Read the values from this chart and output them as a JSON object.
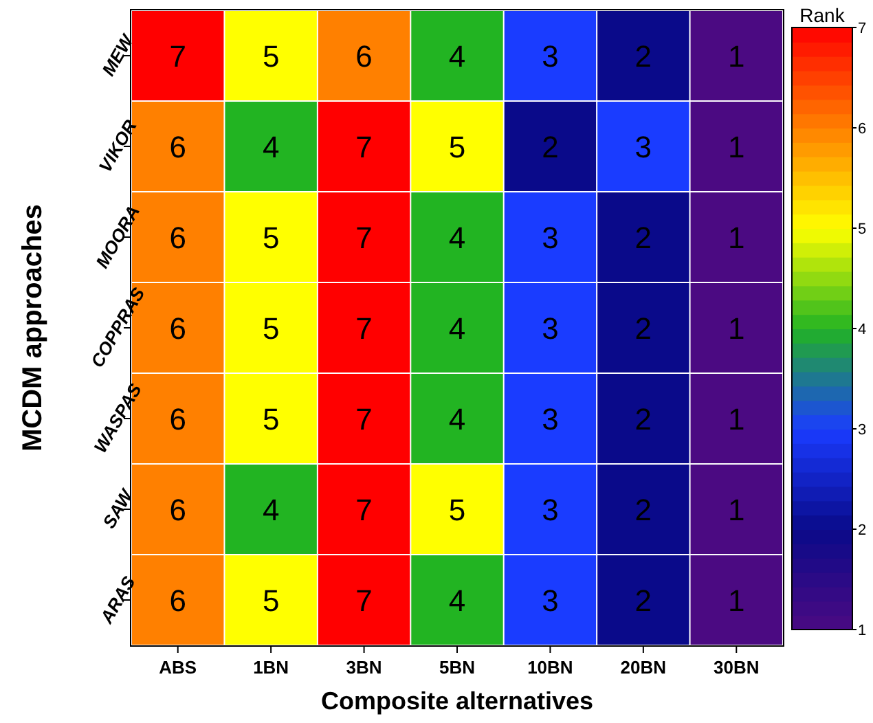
{
  "chart_data": {
    "type": "heatmap",
    "xlabel": "Composite alternatives",
    "ylabel": "MCDM approaches",
    "clabel": "Rank",
    "categories": [
      "ABS",
      "1BN",
      "3BN",
      "5BN",
      "10BN",
      "20BN",
      "30BN"
    ],
    "y_categories": [
      "MEW",
      "VIKOR",
      "MOORA",
      "COPPRAS",
      "WASPAS",
      "SAW",
      "ARAS"
    ],
    "cells": [
      [
        7,
        5,
        6,
        4,
        3,
        2,
        1
      ],
      [
        6,
        4,
        7,
        5,
        2,
        3,
        1
      ],
      [
        6,
        5,
        7,
        4,
        3,
        2,
        1
      ],
      [
        6,
        5,
        7,
        4,
        3,
        2,
        1
      ],
      [
        6,
        5,
        7,
        4,
        3,
        2,
        1
      ],
      [
        6,
        4,
        7,
        5,
        3,
        2,
        1
      ],
      [
        6,
        5,
        7,
        4,
        3,
        2,
        1
      ]
    ],
    "data_labels": true,
    "clim": [
      1,
      7
    ],
    "cticks": [
      1,
      2,
      3,
      4,
      5,
      6,
      7
    ]
  }
}
